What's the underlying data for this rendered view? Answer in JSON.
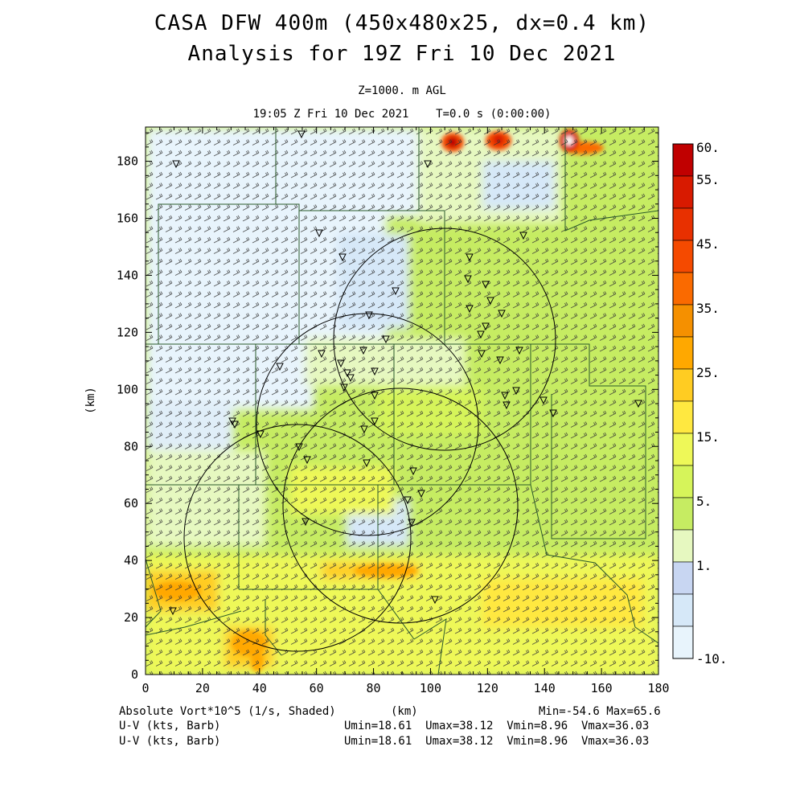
{
  "title": {
    "line1": "CASA DFW 400m (450x480x25, dx=0.4 km)",
    "line2": "Analysis for 19Z Fri 10 Dec 2021"
  },
  "subtitle": {
    "level": "Z=1000. m AGL",
    "time": "19:05 Z Fri 10 Dec 2021    T=0.0 s (0:00:00)"
  },
  "axes": {
    "x_ticks": [
      "0",
      "20",
      "40",
      "60",
      "80",
      "100",
      "120",
      "140",
      "160",
      "180"
    ],
    "y_ticks": [
      "0",
      "20",
      "40",
      "60",
      "80",
      "100",
      "120",
      "140",
      "160",
      "180"
    ],
    "xlabel": "(km)",
    "ylabel": "(km)",
    "xlim": [
      0,
      180
    ],
    "ylim": [
      0,
      192
    ]
  },
  "colorbar": {
    "labels": [
      "60.",
      "55.",
      "45.",
      "35.",
      "25.",
      "15.",
      "5.",
      "1.",
      "-10."
    ],
    "colors": [
      "#c00000",
      "#d81a00",
      "#e83000",
      "#f54a00",
      "#fa6a00",
      "#f59000",
      "#ffa800",
      "#ffcc22",
      "#ffe840",
      "#eef858",
      "#d6f45a",
      "#c6ec62",
      "#e6f8c0",
      "#c8d6f2",
      "#d6e8f8",
      "#e8f4fc"
    ]
  },
  "footer": {
    "field": "Absolute Vort*10^5 (1/s, Shaded)",
    "xunit": "(km)",
    "minmax": "Min=-54.6 Max=65.6",
    "uv1_label": "U-V (kts, Barb)",
    "uv1_stats": "Umin=18.61  Umax=38.12  Vmin=8.96  Vmax=36.03",
    "uv2_label": "U-V (kts, Barb)",
    "uv2_stats": "Umin=18.61  Umax=38.12  Vmin=8.96  Vmax=36.03"
  },
  "chart_data": {
    "type": "heatmap",
    "field": "Absolute Vorticity x10^5 (1/s)",
    "value_range": [
      -54.6,
      65.6
    ],
    "wind_barbs": {
      "u_range_kts": [
        18.61,
        38.12
      ],
      "v_range_kts": [
        8.96,
        36.03
      ]
    },
    "radar_rings_km": [
      {
        "center": [
          78,
          103
        ],
        "radius": 39
      },
      {
        "center": [
          96,
          80
        ],
        "radius": 30
      },
      {
        "center": [
          55,
          48
        ],
        "radius": 40
      },
      {
        "center": [
          89,
          60
        ],
        "radius": 42
      }
    ],
    "high_vorticity_cells_km": [
      {
        "x": 108,
        "y": 186,
        "value": 55
      },
      {
        "x": 124,
        "y": 186,
        "value": 50
      },
      {
        "x": 149,
        "y": 187,
        "value": 65
      }
    ]
  }
}
